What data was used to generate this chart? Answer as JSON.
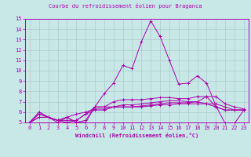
{
  "title": "Courbe du refroidissement éolien pour Braganca",
  "xlabel": "Windchill (Refroidissement éolien,°C)",
  "background_color": "#c8e8e8",
  "grid_color": "#b0c8d0",
  "line_color": "#aa00aa",
  "xlim": [
    -0.5,
    23.5
  ],
  "ylim": [
    5,
    15
  ],
  "xticks": [
    0,
    1,
    2,
    3,
    4,
    5,
    6,
    7,
    8,
    9,
    10,
    11,
    12,
    13,
    14,
    15,
    16,
    17,
    18,
    19,
    20,
    21,
    22,
    23
  ],
  "yticks": [
    5,
    6,
    7,
    8,
    9,
    10,
    11,
    12,
    13,
    14,
    15
  ],
  "series": [
    [
      5.0,
      6.0,
      5.5,
      5.0,
      5.5,
      5.0,
      5.0,
      6.5,
      7.8,
      8.8,
      10.5,
      10.2,
      12.8,
      14.8,
      13.3,
      11.0,
      8.7,
      8.8,
      9.5,
      8.8,
      6.6,
      4.9,
      4.9,
      6.2
    ],
    [
      5.0,
      5.5,
      5.5,
      5.2,
      5.2,
      5.2,
      5.8,
      6.5,
      6.5,
      7.0,
      7.2,
      7.2,
      7.2,
      7.3,
      7.4,
      7.4,
      7.3,
      7.3,
      7.5,
      7.5,
      6.5,
      6.2,
      6.2,
      6.2
    ],
    [
      5.0,
      5.5,
      5.5,
      5.2,
      5.0,
      5.2,
      5.8,
      6.2,
      6.2,
      6.5,
      6.7,
      6.7,
      6.8,
      6.9,
      7.0,
      7.1,
      7.1,
      7.0,
      7.0,
      6.8,
      6.5,
      6.2,
      6.2,
      6.2
    ],
    [
      5.0,
      5.8,
      5.5,
      5.2,
      5.5,
      5.8,
      6.0,
      6.3,
      6.3,
      6.5,
      6.5,
      6.5,
      6.6,
      6.7,
      6.8,
      6.9,
      6.9,
      6.9,
      7.0,
      7.5,
      7.5,
      6.8,
      6.5,
      6.3
    ],
    [
      5.0,
      6.0,
      5.5,
      5.2,
      5.5,
      5.0,
      5.2,
      6.5,
      6.5,
      6.5,
      6.5,
      6.5,
      6.5,
      6.6,
      6.7,
      6.7,
      6.8,
      6.8,
      6.8,
      6.8,
      6.8,
      6.5,
      6.2,
      6.2
    ]
  ]
}
